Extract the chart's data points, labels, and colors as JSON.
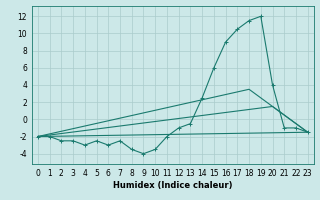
{
  "xlabel": "Humidex (Indice chaleur)",
  "ylabel": "",
  "bg_color": "#cce8e8",
  "grid_color": "#aacccc",
  "line_color": "#1a7a6e",
  "xlim": [
    -0.5,
    23.5
  ],
  "ylim": [
    -5.2,
    13.2
  ],
  "xticks": [
    0,
    1,
    2,
    3,
    4,
    5,
    6,
    7,
    8,
    9,
    10,
    11,
    12,
    13,
    14,
    15,
    16,
    17,
    18,
    19,
    20,
    21,
    22,
    23
  ],
  "yticks": [
    -4,
    -2,
    0,
    2,
    4,
    6,
    8,
    10,
    12
  ],
  "line1_x": [
    0,
    1,
    2,
    3,
    4,
    5,
    6,
    7,
    8,
    9,
    10,
    11,
    12,
    13,
    14,
    15,
    16,
    17,
    18,
    19,
    20,
    21,
    22,
    23
  ],
  "line1_y": [
    -2,
    -2,
    -2.5,
    -2.5,
    -3,
    -2.5,
    -3,
    -2.5,
    -3.5,
    -4,
    -3.5,
    -2,
    -1,
    -0.5,
    2.5,
    6,
    9,
    10.5,
    11.5,
    12,
    4,
    -1,
    -1,
    -1.5
  ],
  "line2_x": [
    0,
    23
  ],
  "line2_y": [
    -2,
    -1.5
  ],
  "line3_x": [
    0,
    20,
    23
  ],
  "line3_y": [
    -2,
    1.5,
    -1.5
  ],
  "line4_x": [
    0,
    18,
    23
  ],
  "line4_y": [
    -2,
    3.5,
    -1.5
  ],
  "xlabel_fontsize": 6.0,
  "tick_fontsize": 5.5
}
